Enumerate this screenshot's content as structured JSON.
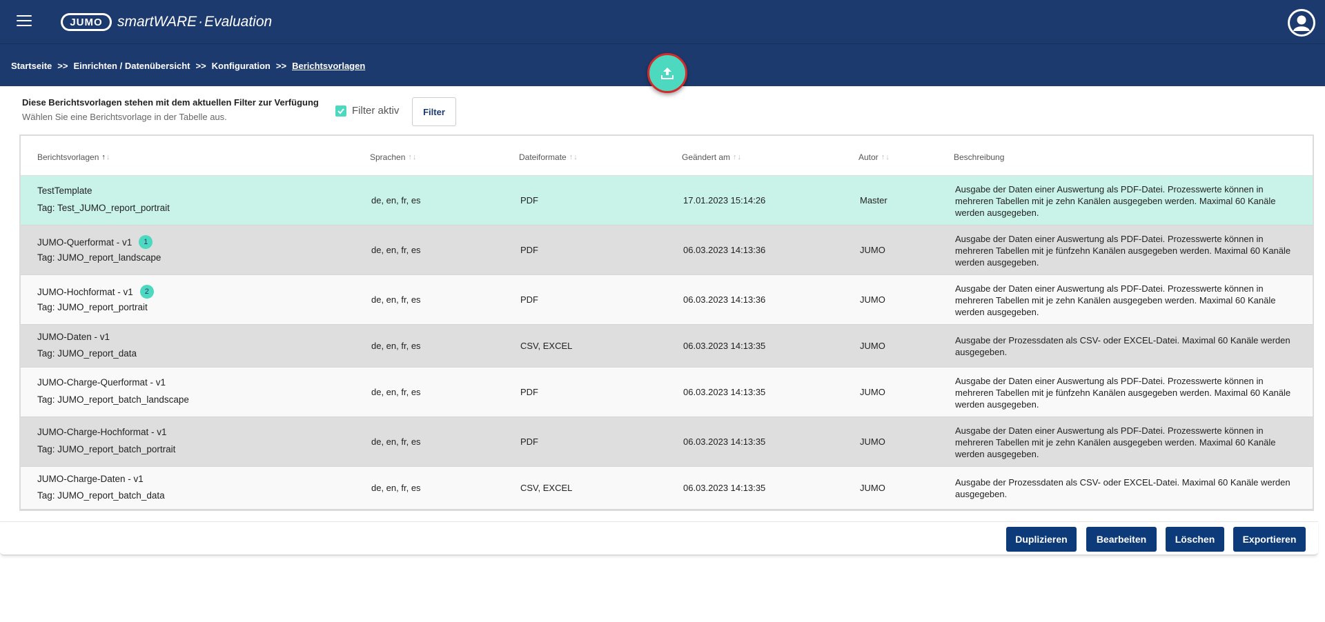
{
  "header": {
    "logo_text": "JUMO",
    "app_brand": "smartWARE",
    "app_sep": "·",
    "app_module": "Evaluation"
  },
  "breadcrumb": {
    "items": [
      "Startseite",
      "Einrichten / Datenübersicht",
      "Konfiguration",
      "Berichtsvorlagen"
    ],
    "separator": ">>"
  },
  "intro": {
    "title": "Diese Berichtsvorlagen stehen mit dem aktuellen Filter zur Verfügung",
    "subtitle": "Wählen Sie eine Berichtsvorlage in der Tabelle aus.",
    "filter_active_label": "Filter aktiv",
    "filter_active_checked": true,
    "filter_button": "Filter"
  },
  "table": {
    "columns": [
      "Berichtsvorlagen",
      "Sprachen",
      "Dateiformate",
      "Geändert am",
      "Autor",
      "Beschreibung"
    ],
    "rows": [
      {
        "name": "TestTemplate",
        "tag": "Tag: Test_JUMO_report_portrait",
        "badge": "",
        "languages": "de, en, fr, es",
        "formats": "PDF",
        "changed": "17.01.2023 15:14:26",
        "author": "Master",
        "description": "Ausgabe der Daten einer Auswertung als PDF-Datei. Prozesswerte können in mehreren Tabellen mit je zehn Kanälen ausgegeben werden. Maximal 60 Kanäle werden ausgegeben.",
        "selected": true
      },
      {
        "name": "JUMO-Querformat - v1",
        "tag": "Tag: JUMO_report_landscape",
        "badge": "1",
        "languages": "de, en, fr, es",
        "formats": "PDF",
        "changed": "06.03.2023 14:13:36",
        "author": "JUMO",
        "description": "Ausgabe der Daten einer Auswertung als PDF-Datei. Prozesswerte können in mehreren Tabellen mit je fünfzehn Kanälen ausgegeben werden. Maximal 60 Kanäle werden ausgegeben.",
        "selected": false
      },
      {
        "name": "JUMO-Hochformat - v1",
        "tag": "Tag: JUMO_report_portrait",
        "badge": "2",
        "languages": "de, en, fr, es",
        "formats": "PDF",
        "changed": "06.03.2023 14:13:36",
        "author": "JUMO",
        "description": "Ausgabe der Daten einer Auswertung als PDF-Datei. Prozesswerte können in mehreren Tabellen mit je zehn Kanälen ausgegeben werden. Maximal 60 Kanäle werden ausgegeben.",
        "selected": false
      },
      {
        "name": "JUMO-Daten - v1",
        "tag": "Tag: JUMO_report_data",
        "badge": "",
        "languages": "de, en, fr, es",
        "formats": "CSV, EXCEL",
        "changed": "06.03.2023 14:13:35",
        "author": "JUMO",
        "description": "Ausgabe der Prozessdaten als CSV- oder EXCEL-Datei. Maximal 60 Kanäle werden ausgegeben.",
        "selected": false
      },
      {
        "name": "JUMO-Charge-Querformat - v1",
        "tag": "Tag: JUMO_report_batch_landscape",
        "badge": "",
        "languages": "de, en, fr, es",
        "formats": "PDF",
        "changed": "06.03.2023 14:13:35",
        "author": "JUMO",
        "description": "Ausgabe der Daten einer Auswertung als PDF-Datei. Prozesswerte können in mehreren Tabellen mit je fünfzehn Kanälen ausgegeben werden. Maximal 60 Kanäle werden ausgegeben.",
        "selected": false
      },
      {
        "name": "JUMO-Charge-Hochformat - v1",
        "tag": "Tag: JUMO_report_batch_portrait",
        "badge": "",
        "languages": "de, en, fr, es",
        "formats": "PDF",
        "changed": "06.03.2023 14:13:35",
        "author": "JUMO",
        "description": "Ausgabe der Daten einer Auswertung als PDF-Datei. Prozesswerte können in mehreren Tabellen mit je zehn Kanälen ausgegeben werden. Maximal 60 Kanäle werden ausgegeben.",
        "selected": false
      },
      {
        "name": "JUMO-Charge-Daten - v1",
        "tag": "Tag: JUMO_report_batch_data",
        "badge": "",
        "languages": "de, en, fr, es",
        "formats": "CSV, EXCEL",
        "changed": "06.03.2023 14:13:35",
        "author": "JUMO",
        "description": "Ausgabe der Prozessdaten als CSV- oder EXCEL-Datei. Maximal 60 Kanäle werden ausgegeben.",
        "selected": false
      }
    ]
  },
  "actions": {
    "duplicate": "Duplizieren",
    "edit": "Bearbeiten",
    "delete": "Löschen",
    "export": "Exportieren"
  },
  "colors": {
    "header_bg": "#1d3a6e",
    "accent": "#4dd9bf",
    "selected_row": "#c9f3e8",
    "alt_row": "#dedede",
    "button_bg": "#0d3a78",
    "fab_ring": "#d42a2a"
  },
  "icons": {
    "menu": "hamburger-icon",
    "upload": "upload-icon",
    "avatar": "user-avatar-icon",
    "check": "check-icon",
    "sort": "sort-arrows-icon"
  }
}
